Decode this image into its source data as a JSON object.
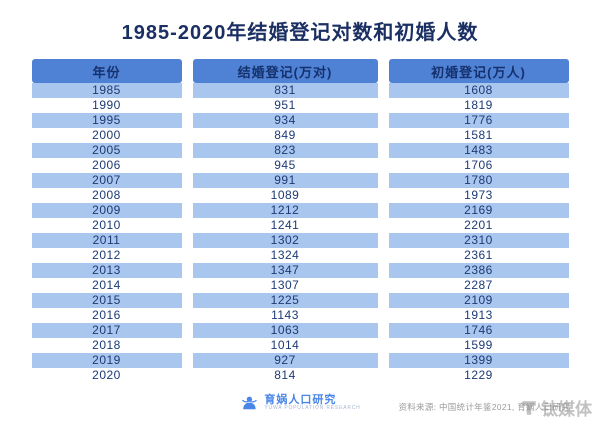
{
  "title": "1985-2020年结婚登记对数和初婚人数",
  "chart_data": {
    "type": "table",
    "title": "1985-2020年结婚登记对数和初婚人数",
    "columns": [
      "年份",
      "结婚登记(万对)",
      "初婚登记(万人)"
    ],
    "rows": [
      [
        "1985",
        "831",
        "1608"
      ],
      [
        "1990",
        "951",
        "1819"
      ],
      [
        "1995",
        "934",
        "1776"
      ],
      [
        "2000",
        "849",
        "1581"
      ],
      [
        "2005",
        "823",
        "1483"
      ],
      [
        "2006",
        "945",
        "1706"
      ],
      [
        "2007",
        "991",
        "1780"
      ],
      [
        "2008",
        "1089",
        "1973"
      ],
      [
        "2009",
        "1212",
        "2169"
      ],
      [
        "2010",
        "1241",
        "2201"
      ],
      [
        "2011",
        "1302",
        "2310"
      ],
      [
        "2012",
        "1324",
        "2361"
      ],
      [
        "2013",
        "1347",
        "2386"
      ],
      [
        "2014",
        "1307",
        "2287"
      ],
      [
        "2015",
        "1225",
        "2109"
      ],
      [
        "2016",
        "1143",
        "1913"
      ],
      [
        "2017",
        "1063",
        "1746"
      ],
      [
        "2018",
        "1014",
        "1599"
      ],
      [
        "2019",
        "927",
        "1399"
      ],
      [
        "2020",
        "814",
        "1229"
      ]
    ]
  },
  "footer": {
    "logo_text": "育娲人口研究",
    "logo_subtext": "YUWA POPULATION RESEARCH",
    "source": "资料来源: 中国统计年鉴2021, 育娲人口研究",
    "watermark": "钛媒体"
  },
  "colors": {
    "title_text": "#1b2f63",
    "header_bg": "#4f81d4",
    "header_text": "#15316e",
    "row_stripe": "#a9c6ee",
    "cell_text": "#1c3a75",
    "logo_blue": "#4a86e8",
    "source_text": "#9b9b9b",
    "watermark_gray": "#8f8f8f"
  }
}
